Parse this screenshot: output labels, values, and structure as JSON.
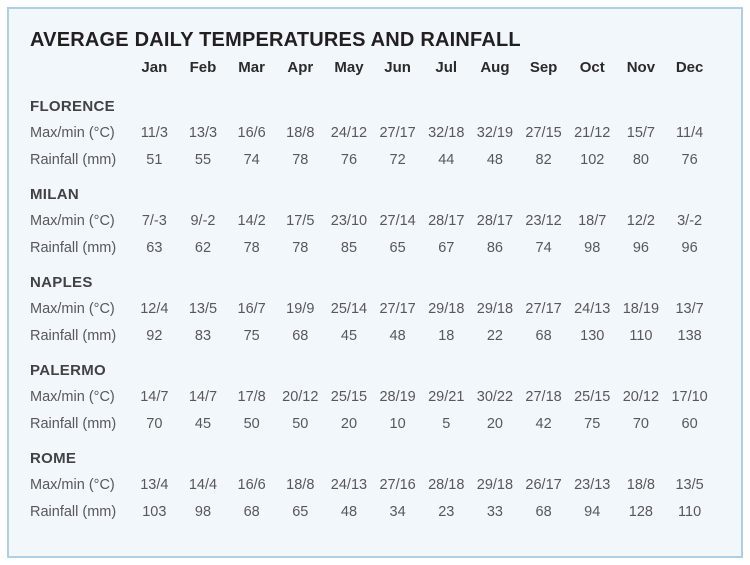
{
  "chart_data": {
    "type": "table",
    "title": "AVERAGE DAILY TEMPERATURES AND RAINFALL",
    "columns": [
      "Jan",
      "Feb",
      "Mar",
      "Apr",
      "May",
      "Jun",
      "Jul",
      "Aug",
      "Sep",
      "Oct",
      "Nov",
      "Dec"
    ],
    "row_labels": {
      "temperature": "Max/min (°C)",
      "rainfall": "Rainfall (mm)"
    },
    "groups": [
      {
        "name": "FLORENCE",
        "max_min_c": [
          "11/3",
          "13/3",
          "16/6",
          "18/8",
          "24/12",
          "27/17",
          "32/18",
          "32/19",
          "27/15",
          "21/12",
          "15/7",
          "11/4"
        ],
        "rainfall_mm": [
          51,
          55,
          74,
          78,
          76,
          72,
          44,
          48,
          82,
          102,
          80,
          76
        ]
      },
      {
        "name": "MILAN",
        "max_min_c": [
          "7/-3",
          "9/-2",
          "14/2",
          "17/5",
          "23/10",
          "27/14",
          "28/17",
          "28/17",
          "23/12",
          "18/7",
          "12/2",
          "3/-2"
        ],
        "rainfall_mm": [
          63,
          62,
          78,
          78,
          85,
          65,
          67,
          86,
          74,
          98,
          96,
          96
        ]
      },
      {
        "name": "NAPLES",
        "max_min_c": [
          "12/4",
          "13/5",
          "16/7",
          "19/9",
          "25/14",
          "27/17",
          "29/18",
          "29/18",
          "27/17",
          "24/13",
          "18/19",
          "13/7"
        ],
        "rainfall_mm": [
          92,
          83,
          75,
          68,
          45,
          48,
          18,
          22,
          68,
          130,
          110,
          138
        ]
      },
      {
        "name": "PALERMO",
        "max_min_c": [
          "14/7",
          "14/7",
          "17/8",
          "20/12",
          "25/15",
          "28/19",
          "29/21",
          "30/22",
          "27/18",
          "25/15",
          "20/12",
          "17/10"
        ],
        "rainfall_mm": [
          70,
          45,
          50,
          50,
          20,
          10,
          5,
          20,
          42,
          75,
          70,
          60
        ]
      },
      {
        "name": "ROME",
        "max_min_c": [
          "13/4",
          "14/4",
          "16/6",
          "18/8",
          "24/13",
          "27/16",
          "28/18",
          "29/18",
          "26/17",
          "23/13",
          "18/8",
          "13/5"
        ],
        "rainfall_mm": [
          103,
          98,
          68,
          65,
          48,
          34,
          23,
          33,
          68,
          94,
          128,
          110
        ]
      }
    ]
  },
  "colors": {
    "panel_background": "#f2f7fb",
    "panel_border": "#aed0e4",
    "title_text": "#231f20",
    "heading_text": "#414246",
    "body_text": "#56585b"
  }
}
